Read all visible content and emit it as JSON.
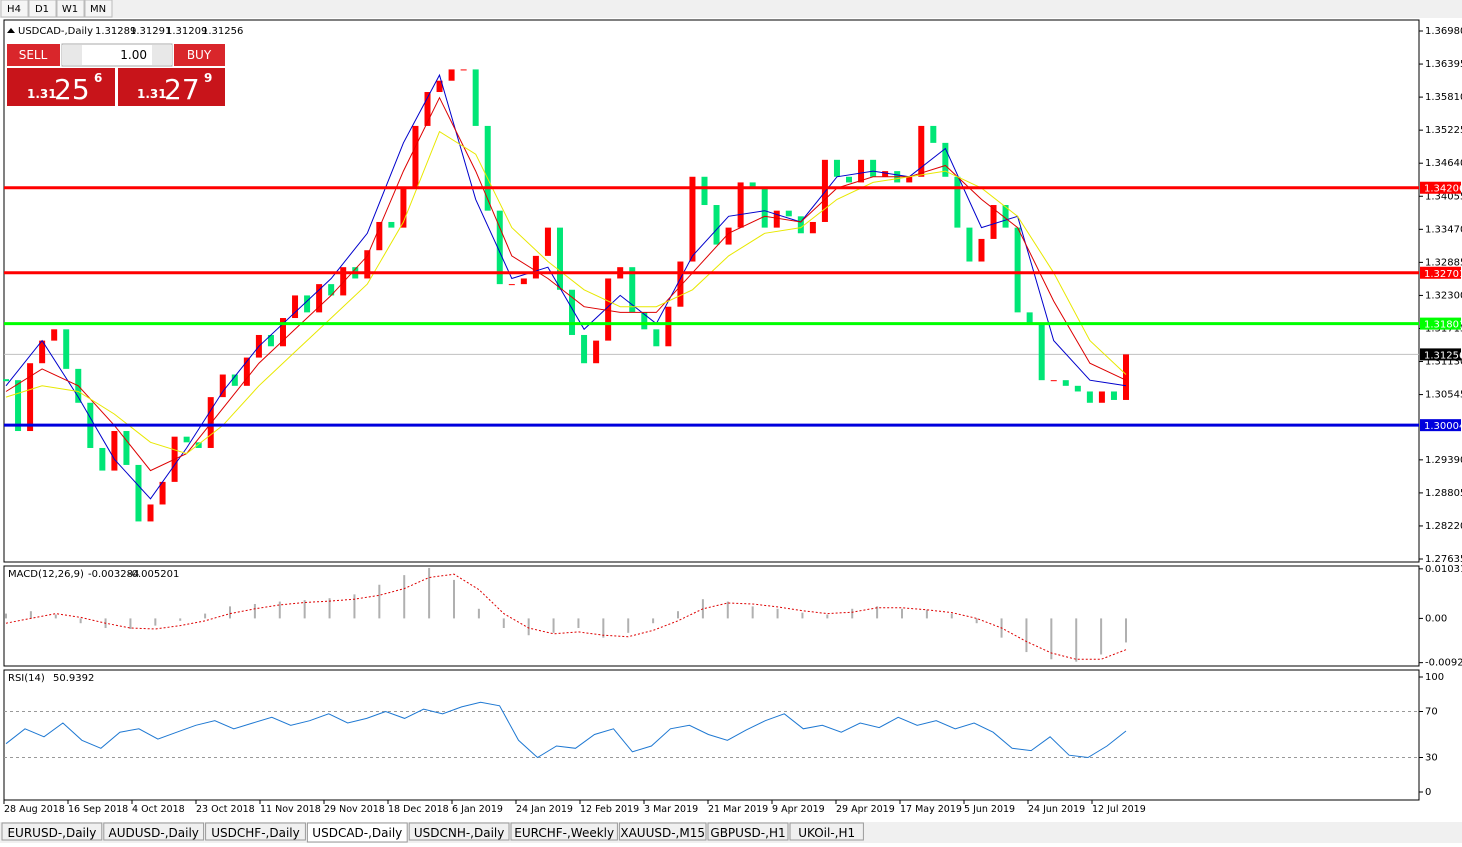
{
  "timeframes": [
    "H4",
    "D1",
    "W1",
    "MN"
  ],
  "symbol_header": {
    "symbol": "USDCAD-,Daily",
    "open": 1.31289,
    "high": 1.31291,
    "low": 1.31209,
    "close": 1.31256
  },
  "trade_panel": {
    "sell": "SELL",
    "buy": "BUY",
    "lot": "1.00",
    "sell_big": "1.31",
    "sell_pips": 25,
    "sell_point": 6,
    "buy_big": "1.31",
    "buy_pips": 27,
    "buy_point": 9
  },
  "price_chart": {
    "ylim": [
      1.27635,
      1.3698
    ],
    "yticks": [
      {
        "value": 1.3698,
        "label": "1.36980"
      },
      1.36395,
      {
        "value": 1.3581,
        "label": "1.35810"
      },
      1.35225,
      {
        "value": 1.3464,
        "label": "1.34640"
      },
      1.34055,
      {
        "value": 1.3347,
        "label": "1.33470"
      },
      1.32885,
      {
        "value": 1.323,
        "label": "1.32300"
      },
      1.31715,
      {
        "value": 1.3113,
        "label": "1.31130"
      },
      1.30545,
      {
        "value": 1.2939,
        "label": "1.29390"
      },
      1.28805,
      {
        "value": 1.2822,
        "label": "1.28220"
      },
      1.27635
    ],
    "closes": [
      1.308,
      1.299,
      1.311,
      1.315,
      1.317,
      1.31,
      1.304,
      1.296,
      1.292,
      1.299,
      1.293,
      1.283,
      1.286,
      1.29,
      1.298,
      1.297,
      1.296,
      1.305,
      1.309,
      1.307,
      1.312,
      1.316,
      1.314,
      1.319,
      1.323,
      1.32,
      1.325,
      1.323,
      1.328,
      1.326,
      1.331,
      1.336,
      1.335,
      1.342,
      1.353,
      1.359,
      1.361,
      1.363,
      1.363,
      1.353,
      1.338,
      1.325,
      1.325,
      1.326,
      1.33,
      1.335,
      1.324,
      1.316,
      1.311,
      1.315,
      1.326,
      1.328,
      1.32,
      1.317,
      1.314,
      1.321,
      1.329,
      1.344,
      1.339,
      1.332,
      1.335,
      1.343,
      1.342,
      1.335,
      1.338,
      1.337,
      1.334,
      1.336,
      1.347,
      1.344,
      1.343,
      1.347,
      1.344,
      1.345,
      1.343,
      1.344,
      1.353,
      1.35,
      1.344,
      1.335,
      1.329,
      1.333,
      1.339,
      1.335,
      1.32,
      1.318,
      1.308,
      1.308,
      1.307,
      1.306,
      1.304,
      1.306,
      1.3045,
      1.31256
    ],
    "bull_color": "#ff0000",
    "bear_color": "#00e676",
    "ma_lines": [
      {
        "color": "#0000cc",
        "values": [
          1.307,
          1.315,
          1.305,
          1.294,
          1.287,
          1.296,
          1.306,
          1.314,
          1.32,
          1.326,
          1.334,
          1.35,
          1.362,
          1.34,
          1.326,
          1.328,
          1.317,
          1.323,
          1.318,
          1.33,
          1.337,
          1.338,
          1.336,
          1.344,
          1.345,
          1.344,
          1.349,
          1.335,
          1.337,
          1.315,
          1.308,
          1.307
        ]
      },
      {
        "color": "#dd0000",
        "values": [
          1.306,
          1.31,
          1.307,
          1.3,
          1.292,
          1.295,
          1.303,
          1.311,
          1.317,
          1.323,
          1.33,
          1.345,
          1.358,
          1.345,
          1.33,
          1.326,
          1.321,
          1.32,
          1.32,
          1.327,
          1.334,
          1.337,
          1.336,
          1.342,
          1.344,
          1.344,
          1.346,
          1.34,
          1.335,
          1.322,
          1.311,
          1.308
        ]
      },
      {
        "color": "#e8e800",
        "values": [
          1.305,
          1.307,
          1.306,
          1.302,
          1.297,
          1.295,
          1.3,
          1.307,
          1.313,
          1.319,
          1.325,
          1.336,
          1.352,
          1.348,
          1.335,
          1.329,
          1.324,
          1.321,
          1.321,
          1.324,
          1.33,
          1.334,
          1.335,
          1.34,
          1.343,
          1.344,
          1.345,
          1.342,
          1.337,
          1.327,
          1.315,
          1.309
        ]
      }
    ],
    "levels": [
      {
        "value": 1.34206,
        "color": "#ff0000"
      },
      {
        "value": 1.32701,
        "color": "#ff0000"
      },
      {
        "value": 1.31801,
        "color": "#00ff00"
      },
      {
        "value": 1.30004,
        "color": "#0000dd"
      }
    ],
    "current_price": 1.31256
  },
  "macd": {
    "label": "MACD(12,26,9)",
    "main": -0.003284,
    "signal_value": -0.005201,
    "ylim": [
      -0.0099,
      0.0109
    ],
    "yticks": [
      0.010311,
      {
        "value": 0,
        "label": "0.00"
      },
      -0.009203
    ],
    "histogram": [
      0.001,
      0.0015,
      0.0008,
      -0.001,
      -0.002,
      -0.0022,
      -0.0015,
      -0.0005,
      0.001,
      0.0025,
      0.003,
      0.0035,
      0.0038,
      0.0042,
      0.005,
      0.007,
      0.009,
      0.0105,
      0.008,
      0.002,
      -0.002,
      -0.0035,
      -0.003,
      -0.002,
      -0.004,
      -0.003,
      -0.001,
      0.0015,
      0.004,
      0.0035,
      0.0025,
      0.002,
      0.0012,
      0.0008,
      0.002,
      0.0025,
      0.002,
      0.0018,
      0.001,
      -0.001,
      -0.004,
      -0.007,
      -0.0085,
      -0.009,
      -0.0075,
      -0.005
    ],
    "signal": [
      -0.001,
      0,
      0.001,
      0.0002,
      -0.001,
      -0.002,
      -0.0022,
      -0.0015,
      -0.0005,
      0.001,
      0.002,
      0.0028,
      0.0033,
      0.0036,
      0.004,
      0.0048,
      0.0062,
      0.0085,
      0.0092,
      0.006,
      0.001,
      -0.002,
      -0.0032,
      -0.0028,
      -0.0035,
      -0.0038,
      -0.0025,
      -0.0005,
      0.002,
      0.0032,
      0.003,
      0.0024,
      0.0016,
      0.001,
      0.0013,
      0.0022,
      0.0022,
      0.0018,
      0.0012,
      0,
      -0.002,
      -0.0048,
      -0.0072,
      -0.0085,
      -0.0085,
      -0.0065
    ],
    "hist_color": "#b0b0b0",
    "signal_color": "#dd0000"
  },
  "rsi": {
    "label": "RSI(14)",
    "value": 50.9392,
    "ylim": [
      0,
      100
    ],
    "yticks": [
      100,
      70,
      30,
      0
    ],
    "levels": [
      70,
      30
    ],
    "color": "#1e78d2",
    "values": [
      42,
      55,
      48,
      60,
      45,
      38,
      52,
      55,
      46,
      52,
      58,
      62,
      55,
      60,
      65,
      58,
      62,
      68,
      60,
      64,
      70,
      64,
      72,
      68,
      74,
      78,
      75,
      45,
      30,
      40,
      38,
      50,
      55,
      35,
      40,
      55,
      58,
      50,
      45,
      54,
      62,
      68,
      55,
      58,
      52,
      60,
      56,
      65,
      58,
      62,
      55,
      60,
      52,
      38,
      36,
      48,
      32,
      30,
      40,
      53
    ]
  },
  "dates": [
    "28 Aug 2018",
    "16 Sep 2018",
    "4 Oct 2018",
    "23 Oct 2018",
    "11 Nov 2018",
    "29 Nov 2018",
    "18 Dec 2018",
    "6 Jan 2019",
    "24 Jan 2019",
    "12 Feb 2019",
    "3 Mar 2019",
    "21 Mar 2019",
    "9 Apr 2019",
    "29 Apr 2019",
    "17 May 2019",
    "5 Jun 2019",
    "24 Jun 2019",
    "12 Jul 2019"
  ],
  "tabs": [
    "EURUSD-,Daily",
    "AUDUSD-,Daily",
    "USDCHF-,Daily",
    "USDCAD-,Daily",
    "USDCNH-,Daily",
    "EURCHF-,Weekly",
    "XAUUSD-,M15",
    "GBPUSD-,H1",
    "UKOil-,H1"
  ],
  "active_tab": 3
}
